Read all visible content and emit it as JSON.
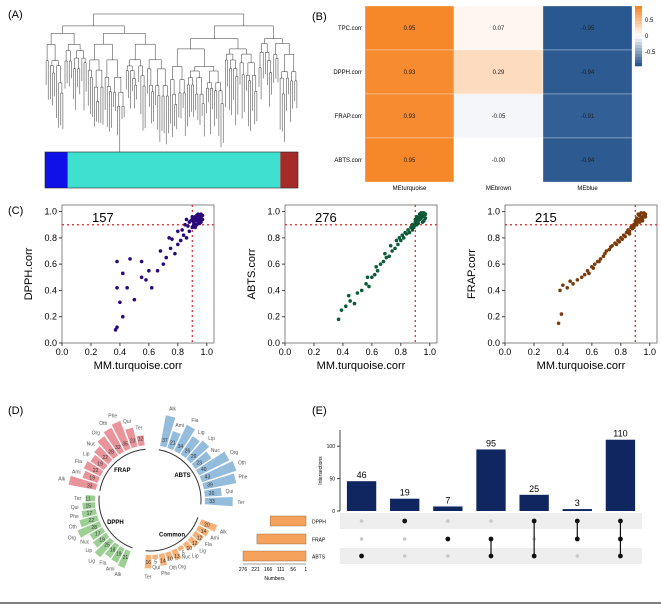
{
  "panels": {
    "A": "(A)",
    "B": "(B)",
    "C": "(C)",
    "D": "(D)",
    "E": "(E)"
  },
  "chart_data": [
    {
      "type": "dendrogram",
      "panel": "(A)",
      "module_colors": [
        {
          "name": "blue",
          "color": "#1010e8",
          "fraction": 0.09
        },
        {
          "name": "turquoise",
          "color": "#40e0d0",
          "fraction": 0.84
        },
        {
          "name": "brown",
          "color": "#a52a2a",
          "fraction": 0.07
        }
      ]
    },
    {
      "type": "heatmap",
      "panel": "(B)",
      "rows": [
        "TPC.corr",
        "DPPH.corr",
        "FRAP.corr",
        "ABTS.corr"
      ],
      "columns": [
        "MEturquoise",
        "MEbrown",
        "MEblue"
      ],
      "values": [
        [
          0.95,
          0.07,
          -0.95
        ],
        [
          0.93,
          0.29,
          -0.94
        ],
        [
          0.93,
          -0.05,
          -0.91
        ],
        [
          0.95,
          -0.0,
          -0.94
        ]
      ],
      "cell_labels": [
        [
          "0.95",
          "0.07",
          "-0.95"
        ],
        [
          "0.93",
          "0.29",
          "-0.94"
        ],
        [
          "0.93",
          "-0.05",
          "-0.91"
        ],
        [
          "0.95",
          "-0.00",
          "-0.94"
        ]
      ],
      "colorbar_ticks": [
        "0.5",
        "0",
        "-0.5"
      ],
      "colorbar_values": [
        0.5,
        0,
        -0.5
      ],
      "color_high": "#f5821f",
      "color_low": "#1e4f8a"
    },
    {
      "type": "scatter",
      "panel": "(C)",
      "xlabel": "MM.turquoise.corr",
      "ylabel": "DPPH.corr",
      "xlim": [
        0,
        1.05
      ],
      "ylim": [
        0,
        1.05
      ],
      "xticks": [
        "0.0",
        "0.2",
        "0.4",
        "0.6",
        "0.8",
        "1.0"
      ],
      "yticks": [
        "0.0",
        "0.2",
        "0.4",
        "0.6",
        "0.8",
        "1.0"
      ],
      "xtick_values": [
        0,
        0.2,
        0.4,
        0.6,
        0.8,
        1.0
      ],
      "ytick_values": [
        0,
        0.2,
        0.4,
        0.6,
        0.8,
        1.0
      ],
      "threshold": 0.9,
      "count_label": "157",
      "point_color": "#2a0a7a",
      "points": [
        [
          0.37,
          0.1
        ],
        [
          0.38,
          0.12
        ],
        [
          0.42,
          0.2
        ],
        [
          0.4,
          0.31
        ],
        [
          0.38,
          0.42
        ],
        [
          0.45,
          0.42
        ],
        [
          0.5,
          0.33
        ],
        [
          0.55,
          0.5
        ],
        [
          0.58,
          0.48
        ],
        [
          0.62,
          0.42
        ],
        [
          0.6,
          0.55
        ],
        [
          0.42,
          0.53
        ],
        [
          0.38,
          0.62
        ],
        [
          0.47,
          0.64
        ],
        [
          0.55,
          0.62
        ],
        [
          0.66,
          0.55
        ],
        [
          0.7,
          0.6
        ],
        [
          0.72,
          0.65
        ],
        [
          0.68,
          0.7
        ],
        [
          0.75,
          0.72
        ],
        [
          0.78,
          0.68
        ],
        [
          0.8,
          0.75
        ],
        [
          0.82,
          0.78
        ],
        [
          0.76,
          0.79
        ],
        [
          0.84,
          0.82
        ],
        [
          0.86,
          0.8
        ],
        [
          0.83,
          0.86
        ],
        [
          0.88,
          0.85
        ],
        [
          0.87,
          0.89
        ],
        [
          0.9,
          0.88
        ],
        [
          0.91,
          0.92
        ],
        [
          0.89,
          0.93
        ],
        [
          0.92,
          0.9
        ],
        [
          0.93,
          0.94
        ],
        [
          0.94,
          0.96
        ],
        [
          0.95,
          0.93
        ],
        [
          0.96,
          0.95
        ],
        [
          0.92,
          0.96
        ],
        [
          0.94,
          0.92
        ],
        [
          0.97,
          0.94
        ],
        [
          0.95,
          0.97
        ],
        [
          0.93,
          0.9
        ],
        [
          0.91,
          0.95
        ],
        [
          0.9,
          0.96
        ],
        [
          0.96,
          0.98
        ],
        [
          0.94,
          0.98
        ],
        [
          0.92,
          0.93
        ],
        [
          0.95,
          0.91
        ],
        [
          0.97,
          0.97
        ],
        [
          0.93,
          0.97
        ],
        [
          0.85,
          0.9
        ],
        [
          0.88,
          0.92
        ],
        [
          0.86,
          0.94
        ],
        [
          0.8,
          0.85
        ],
        [
          0.74,
          0.8
        ],
        [
          0.9,
          0.94
        ],
        [
          0.92,
          0.88
        ],
        [
          0.96,
          0.92
        ],
        [
          0.94,
          0.94
        ],
        [
          0.91,
          0.9
        ]
      ]
    },
    {
      "type": "scatter",
      "panel": "(C)",
      "xlabel": "MM.turquoise.corr",
      "ylabel": "ABTS.corr",
      "xlim": [
        0,
        1.05
      ],
      "ylim": [
        0,
        1.05
      ],
      "xticks": [
        "0.0",
        "0.2",
        "0.4",
        "0.6",
        "0.8",
        "1.0"
      ],
      "yticks": [
        "0.0",
        "0.2",
        "0.4",
        "0.6",
        "0.8",
        "1.0"
      ],
      "xtick_values": [
        0,
        0.2,
        0.4,
        0.6,
        0.8,
        1.0
      ],
      "ytick_values": [
        0,
        0.2,
        0.4,
        0.6,
        0.8,
        1.0
      ],
      "threshold": 0.9,
      "count_label": "276",
      "point_color": "#0d5a38",
      "points": [
        [
          0.37,
          0.18
        ],
        [
          0.39,
          0.25
        ],
        [
          0.42,
          0.28
        ],
        [
          0.45,
          0.32
        ],
        [
          0.48,
          0.3
        ],
        [
          0.5,
          0.38
        ],
        [
          0.53,
          0.4
        ],
        [
          0.56,
          0.45
        ],
        [
          0.58,
          0.43
        ],
        [
          0.6,
          0.5
        ],
        [
          0.62,
          0.52
        ],
        [
          0.64,
          0.55
        ],
        [
          0.66,
          0.6
        ],
        [
          0.68,
          0.62
        ],
        [
          0.7,
          0.65
        ],
        [
          0.72,
          0.66
        ],
        [
          0.74,
          0.7
        ],
        [
          0.76,
          0.72
        ],
        [
          0.78,
          0.75
        ],
        [
          0.8,
          0.78
        ],
        [
          0.82,
          0.8
        ],
        [
          0.84,
          0.83
        ],
        [
          0.86,
          0.84
        ],
        [
          0.88,
          0.86
        ],
        [
          0.89,
          0.88
        ],
        [
          0.9,
          0.9
        ],
        [
          0.91,
          0.92
        ],
        [
          0.92,
          0.93
        ],
        [
          0.93,
          0.94
        ],
        [
          0.94,
          0.95
        ],
        [
          0.95,
          0.96
        ],
        [
          0.96,
          0.97
        ],
        [
          0.97,
          0.98
        ],
        [
          0.93,
          0.98
        ],
        [
          0.91,
          0.96
        ],
        [
          0.95,
          0.92
        ],
        [
          0.96,
          0.93
        ],
        [
          0.94,
          0.97
        ],
        [
          0.92,
          0.95
        ],
        [
          0.97,
          0.95
        ],
        [
          0.9,
          0.94
        ],
        [
          0.88,
          0.9
        ],
        [
          0.87,
          0.88
        ],
        [
          0.85,
          0.86
        ],
        [
          0.83,
          0.84
        ],
        [
          0.81,
          0.82
        ],
        [
          0.79,
          0.8
        ],
        [
          0.77,
          0.78
        ],
        [
          0.94,
          0.99
        ],
        [
          0.95,
          0.99
        ],
        [
          0.96,
          0.99
        ],
        [
          0.93,
          0.96
        ],
        [
          0.92,
          0.91
        ],
        [
          0.91,
          0.9
        ],
        [
          0.9,
          0.92
        ],
        [
          0.44,
          0.36
        ],
        [
          0.57,
          0.5
        ],
        [
          0.63,
          0.58
        ],
        [
          0.69,
          0.68
        ],
        [
          0.73,
          0.74
        ]
      ]
    },
    {
      "type": "scatter",
      "panel": "(C)",
      "xlabel": "MM.turquoise.corr",
      "ylabel": "FRAP.corr",
      "xlim": [
        0,
        1.05
      ],
      "ylim": [
        0,
        1.05
      ],
      "xticks": [
        "0.0",
        "0.2",
        "0.4",
        "0.6",
        "0.8",
        "1.0"
      ],
      "yticks": [
        "0.0",
        "0.2",
        "0.4",
        "0.6",
        "0.8",
        "1.0"
      ],
      "xtick_values": [
        0,
        0.2,
        0.4,
        0.6,
        0.8,
        1.0
      ],
      "ytick_values": [
        0,
        0.2,
        0.4,
        0.6,
        0.8,
        1.0
      ],
      "threshold": 0.9,
      "count_label": "215",
      "point_color": "#7a3a0a",
      "points": [
        [
          0.37,
          0.15
        ],
        [
          0.39,
          0.22
        ],
        [
          0.38,
          0.4
        ],
        [
          0.4,
          0.44
        ],
        [
          0.43,
          0.42
        ],
        [
          0.45,
          0.47
        ],
        [
          0.47,
          0.45
        ],
        [
          0.5,
          0.48
        ],
        [
          0.53,
          0.5
        ],
        [
          0.55,
          0.52
        ],
        [
          0.57,
          0.55
        ],
        [
          0.6,
          0.58
        ],
        [
          0.62,
          0.6
        ],
        [
          0.64,
          0.62
        ],
        [
          0.66,
          0.64
        ],
        [
          0.68,
          0.66
        ],
        [
          0.7,
          0.7
        ],
        [
          0.72,
          0.71
        ],
        [
          0.74,
          0.74
        ],
        [
          0.76,
          0.76
        ],
        [
          0.78,
          0.78
        ],
        [
          0.8,
          0.8
        ],
        [
          0.82,
          0.82
        ],
        [
          0.84,
          0.84
        ],
        [
          0.86,
          0.85
        ],
        [
          0.87,
          0.88
        ],
        [
          0.88,
          0.89
        ],
        [
          0.89,
          0.9
        ],
        [
          0.9,
          0.91
        ],
        [
          0.91,
          0.92
        ],
        [
          0.92,
          0.93
        ],
        [
          0.93,
          0.94
        ],
        [
          0.94,
          0.95
        ],
        [
          0.95,
          0.96
        ],
        [
          0.96,
          0.97
        ],
        [
          0.97,
          0.96
        ],
        [
          0.95,
          0.93
        ],
        [
          0.93,
          0.97
        ],
        [
          0.92,
          0.98
        ],
        [
          0.94,
          0.99
        ],
        [
          0.96,
          0.99
        ],
        [
          0.91,
          0.95
        ],
        [
          0.9,
          0.93
        ],
        [
          0.88,
          0.87
        ],
        [
          0.86,
          0.83
        ],
        [
          0.83,
          0.81
        ],
        [
          0.81,
          0.79
        ],
        [
          0.79,
          0.77
        ],
        [
          0.58,
          0.53
        ],
        [
          0.61,
          0.57
        ],
        [
          0.65,
          0.62
        ],
        [
          0.69,
          0.68
        ],
        [
          0.73,
          0.73
        ],
        [
          0.77,
          0.75
        ],
        [
          0.85,
          0.86
        ],
        [
          0.89,
          0.88
        ],
        [
          0.91,
          0.9
        ],
        [
          0.93,
          0.92
        ],
        [
          0.95,
          0.95
        ],
        [
          0.97,
          0.98
        ]
      ]
    },
    {
      "type": "circular_bar",
      "panel": "(D)",
      "groups": [
        {
          "name": "FRAP",
          "color": "#e8949a",
          "items": [
            {
              "label": "Alk",
              "value": 33
            },
            {
              "label": "Ami",
              "value": 19
            },
            {
              "label": "Fla",
              "value": 22
            },
            {
              "label": "Lip",
              "value": 19
            },
            {
              "label": "Nuc",
              "value": 22
            },
            {
              "label": "Org",
              "value": 28
            },
            {
              "label": "Oth",
              "value": 32
            },
            {
              "label": "Phe",
              "value": 35
            },
            {
              "label": "Qui",
              "value": 23
            },
            {
              "label": "Ter",
              "value": 12
            }
          ]
        },
        {
          "name": "ABTS",
          "color": "#94bcdc",
          "items": [
            {
              "label": "Alk",
              "value": 37
            },
            {
              "label": "Ami",
              "value": 21
            },
            {
              "label": "Fla",
              "value": 34
            },
            {
              "label": "Lig",
              "value": 26
            },
            {
              "label": "Lip",
              "value": 29
            },
            {
              "label": "Nuc",
              "value": 23
            },
            {
              "label": "Org",
              "value": 40
            },
            {
              "label": "Oth",
              "value": 43
            },
            {
              "label": "Phe",
              "value": 39
            },
            {
              "label": "Qui",
              "value": 20
            },
            {
              "label": "Ter",
              "value": 33
            }
          ]
        },
        {
          "name": "Common",
          "color": "#f4b27a",
          "items": [
            {
              "label": "Alk",
              "value": 20
            },
            {
              "label": "Ami",
              "value": 14
            },
            {
              "label": "Fla",
              "value": 12
            },
            {
              "label": "Lig",
              "value": 12
            },
            {
              "label": "Lip",
              "value": 10
            },
            {
              "label": "Nuc",
              "value": 5
            },
            {
              "label": "Org",
              "value": 13
            },
            {
              "label": "Oth",
              "value": 10
            },
            {
              "label": "Phe",
              "value": 14
            },
            {
              "label": "Qui",
              "value": 5
            },
            {
              "label": "Ter",
              "value": 16
            }
          ]
        },
        {
          "name": "DPPH",
          "color": "#9ccf94",
          "items": [
            {
              "label": "Alk",
              "value": 21
            },
            {
              "label": "Ami",
              "value": 19
            },
            {
              "label": "Fla",
              "value": 18
            },
            {
              "label": "Lig",
              "value": 25
            },
            {
              "label": "Lip",
              "value": 19
            },
            {
              "label": "Nuc",
              "value": 17
            },
            {
              "label": "Org",
              "value": 28
            },
            {
              "label": "Oth",
              "value": 22
            },
            {
              "label": "Phe",
              "value": 17
            },
            {
              "label": "Qui",
              "value": 15
            },
            {
              "label": "Ter",
              "value": 11
            }
          ]
        }
      ]
    },
    {
      "type": "upset",
      "panel": "(E)",
      "ylabel": "Intersections",
      "xlabel": "Numbers",
      "sets": [
        "DPPH",
        "FRAP",
        "ABTS"
      ],
      "set_sizes": [
        157,
        215,
        276
      ],
      "size_ticks": [
        "276",
        "221",
        "166",
        "111",
        "56",
        "1"
      ],
      "size_tick_values": [
        276,
        221,
        166,
        111,
        56,
        1
      ],
      "intersection_ticks": [
        "0",
        "50",
        "100"
      ],
      "intersection_tick_values": [
        0,
        50,
        100
      ],
      "ylim": [
        0,
        125
      ],
      "bar_color": "#0f2660",
      "set_bar_color": "#f5a25d",
      "intersections": [
        {
          "value": 46,
          "label": "46",
          "members": [
            "ABTS"
          ]
        },
        {
          "value": 19,
          "label": "19",
          "members": [
            "DPPH"
          ]
        },
        {
          "value": 7,
          "label": "7",
          "members": [
            "FRAP"
          ]
        },
        {
          "value": 95,
          "label": "95",
          "members": [
            "FRAP",
            "ABTS"
          ]
        },
        {
          "value": 25,
          "label": "25",
          "members": [
            "DPPH",
            "ABTS"
          ]
        },
        {
          "value": 3,
          "label": "3",
          "members": [
            "DPPH",
            "FRAP"
          ]
        },
        {
          "value": 110,
          "label": "110",
          "members": [
            "DPPH",
            "FRAP",
            "ABTS"
          ]
        }
      ]
    }
  ]
}
